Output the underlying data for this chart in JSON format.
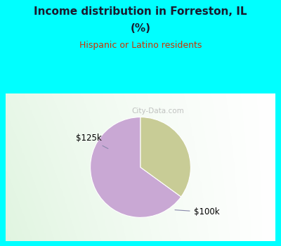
{
  "title_line1": "Income distribution in Forreston, IL",
  "title_line2": "(%)",
  "subtitle": "Hispanic or Latino residents",
  "slices": [
    65.0,
    35.0
  ],
  "labels": [
    "$100k",
    "$125k"
  ],
  "colors": [
    "#C9A8D4",
    "#C8CC96"
  ],
  "background_color": "#00FFFF",
  "title_color": "#1a1a2e",
  "subtitle_color": "#cc3300",
  "label_color": "#000000",
  "startangle": 90,
  "watermark": "City-Data.com",
  "chart_area": [
    0.02,
    0.02,
    0.96,
    0.6
  ]
}
